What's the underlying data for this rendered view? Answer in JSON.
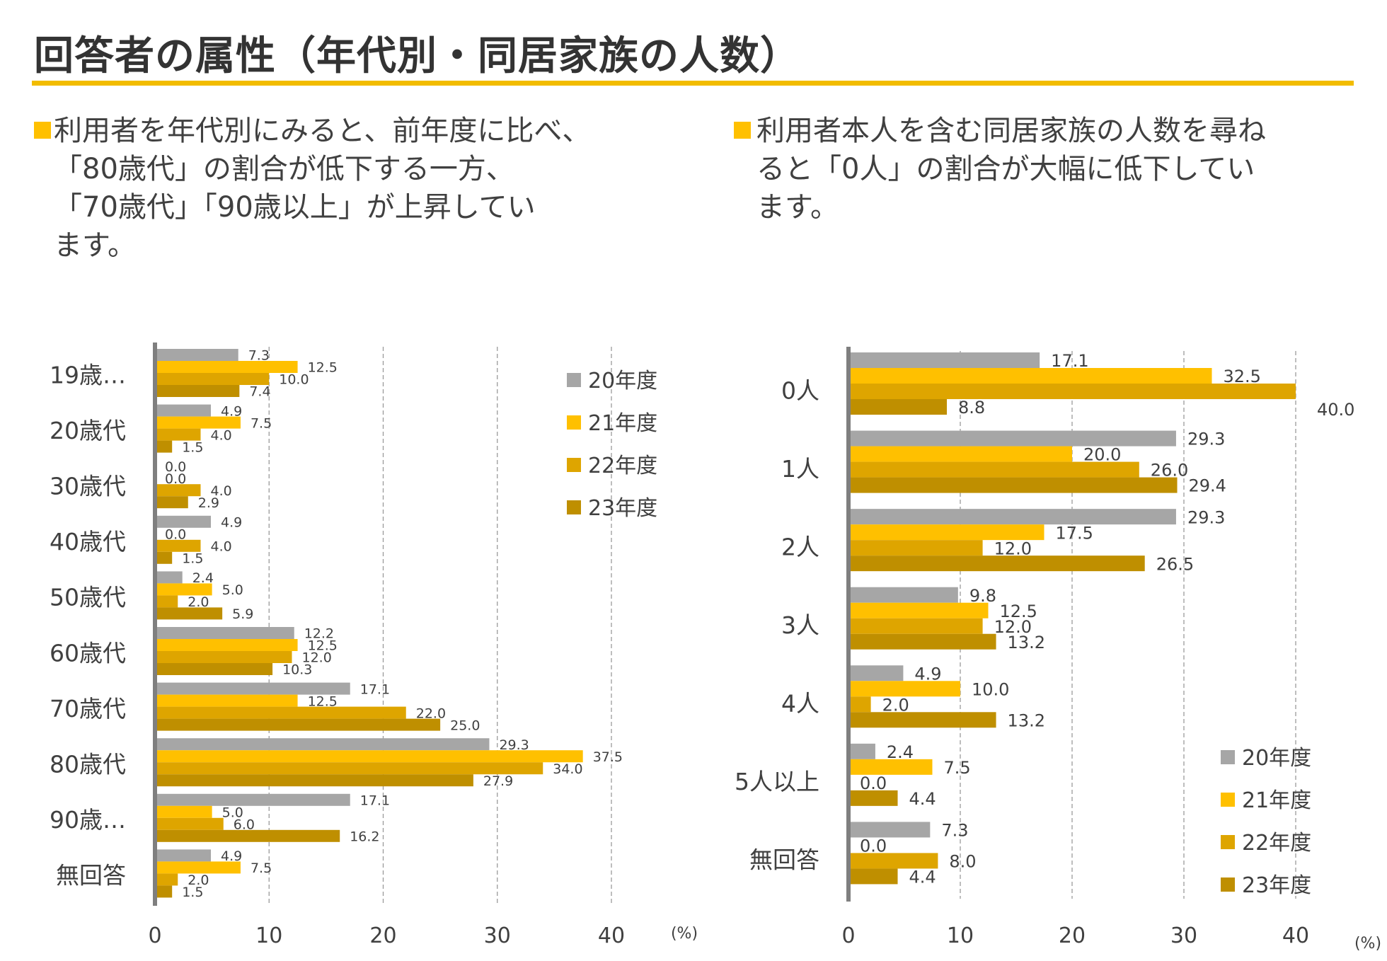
{
  "title": "回答者の属性（年代別・同居家族の人数）",
  "bullets": {
    "left": [
      "利用者を年代別にみると、前年度に比べ、",
      "「80歳代」の割合が低下する一方、",
      "「70歳代」「90歳以上」が上昇してい",
      "ます。"
    ],
    "right": [
      "利用者本人を含む同居家族の人数を尋ね",
      "ると「0人」の割合が大幅に低下してい",
      "ます。"
    ]
  },
  "colors": {
    "accent": "#ffc000",
    "rule": "#f2bc00",
    "series": [
      "#a6a6a6",
      "#ffc000",
      "#dea500",
      "#bf8f00"
    ]
  },
  "chart_data": [
    {
      "type": "bar",
      "orientation": "horizontal",
      "categories": [
        "19歳…",
        "20歳代",
        "30歳代",
        "40歳代",
        "50歳代",
        "60歳代",
        "70歳代",
        "80歳代",
        "90歳…",
        "無回答"
      ],
      "series": [
        {
          "name": "20年度",
          "values": [
            7.3,
            4.9,
            0.0,
            4.9,
            2.4,
            12.2,
            17.1,
            29.3,
            17.1,
            4.9
          ]
        },
        {
          "name": "21年度",
          "values": [
            12.5,
            7.5,
            0.0,
            0.0,
            5.0,
            12.5,
            12.5,
            37.5,
            5.0,
            7.5
          ]
        },
        {
          "name": "22年度",
          "values": [
            10.0,
            4.0,
            4.0,
            4.0,
            2.0,
            12.0,
            22.0,
            34.0,
            6.0,
            2.0
          ]
        },
        {
          "name": "23年度",
          "values": [
            7.4,
            1.5,
            2.9,
            1.5,
            5.9,
            10.3,
            25.0,
            27.9,
            16.2,
            1.5
          ]
        }
      ],
      "xlim": [
        0,
        40
      ],
      "ticks": [
        "0",
        "10",
        "20",
        "30",
        "40"
      ],
      "unit": "(%)",
      "grid": "vertical dashed",
      "legend": "top-right"
    },
    {
      "type": "bar",
      "orientation": "horizontal",
      "categories": [
        "0人",
        "1人",
        "2人",
        "3人",
        "4人",
        "5人以上",
        "無回答"
      ],
      "series": [
        {
          "name": "20年度",
          "values": [
            17.1,
            29.3,
            29.3,
            9.8,
            4.9,
            2.4,
            7.3
          ]
        },
        {
          "name": "21年度",
          "values": [
            32.5,
            20.0,
            17.5,
            12.5,
            10.0,
            7.5,
            0.0
          ]
        },
        {
          "name": "22年度",
          "values": [
            40.0,
            26.0,
            12.0,
            12.0,
            2.0,
            0.0,
            8.0
          ]
        },
        {
          "name": "23年度",
          "values": [
            8.8,
            29.4,
            26.5,
            13.2,
            13.2,
            4.4,
            4.4
          ]
        }
      ],
      "xlim": [
        0,
        40
      ],
      "ticks": [
        "0",
        "10",
        "20",
        "30",
        "40"
      ],
      "unit": "(%)",
      "grid": "vertical dashed",
      "legend": "bottom-right"
    }
  ]
}
